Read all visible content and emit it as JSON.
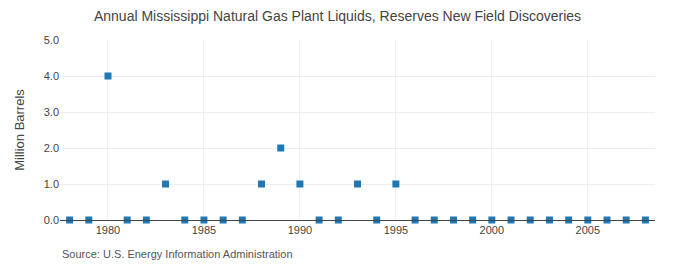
{
  "chart_data": {
    "type": "scatter",
    "title": "Annual Mississippi Natural Gas Plant Liquids, Reserves New Field Discoveries",
    "ylabel": "Million Barrels",
    "annotations": [
      "Source: U.S. Energy Information Administration"
    ],
    "x": [
      1978,
      1979,
      1980,
      1981,
      1982,
      1983,
      1984,
      1985,
      1986,
      1987,
      1988,
      1989,
      1990,
      1991,
      1992,
      1993,
      1994,
      1995,
      1996,
      1997,
      1998,
      1999,
      2000,
      2001,
      2002,
      2003,
      2004,
      2005,
      2006,
      2007,
      2008
    ],
    "values": [
      0.0,
      0.0,
      4.0,
      0.0,
      0.0,
      1.0,
      0.0,
      0.0,
      0.0,
      0.0,
      1.0,
      2.0,
      1.0,
      0.0,
      0.0,
      1.0,
      0.0,
      1.0,
      0.0,
      0.0,
      0.0,
      0.0,
      0.0,
      0.0,
      0.0,
      0.0,
      0.0,
      0.0,
      0.0,
      0.0,
      0.0
    ],
    "marker": "square",
    "xlim": [
      1977.5,
      2008.5
    ],
    "xticks": [
      1980,
      1985,
      1990,
      1995,
      2000,
      2005
    ],
    "ylim": [
      0.0,
      5.0
    ],
    "yticks": [
      {
        "value": 0.0,
        "label": "0.0"
      },
      {
        "value": 1.0,
        "label": "1.0"
      },
      {
        "value": 2.0,
        "label": "2.0"
      },
      {
        "value": 3.0,
        "label": "3.0"
      },
      {
        "value": 4.0,
        "label": "4.0"
      },
      {
        "value": 5.0,
        "label": "5.0"
      }
    ],
    "grid": true
  }
}
